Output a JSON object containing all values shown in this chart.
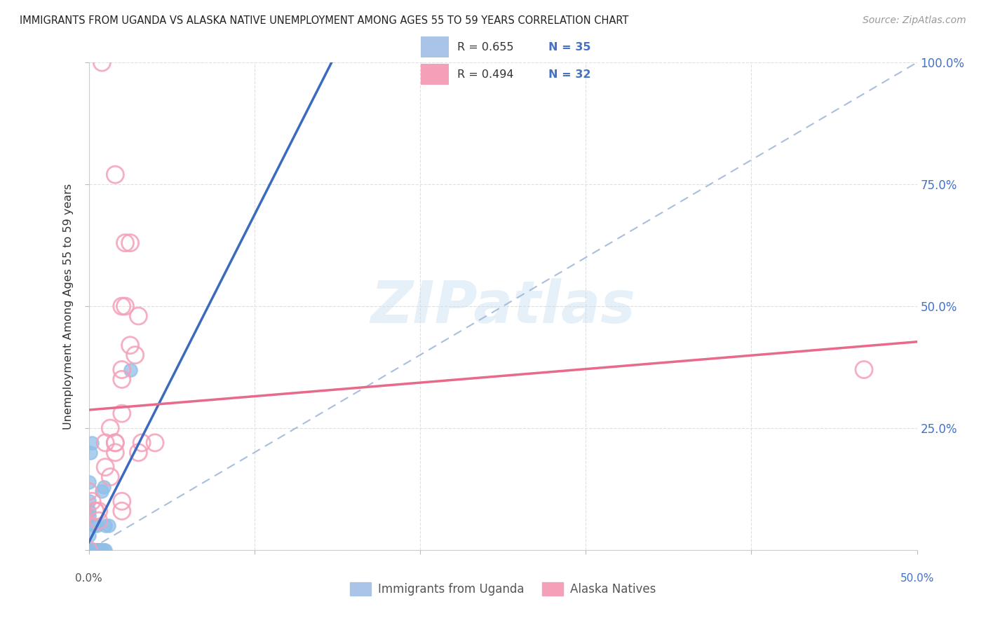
{
  "title": "IMMIGRANTS FROM UGANDA VS ALASKA NATIVE UNEMPLOYMENT AMONG AGES 55 TO 59 YEARS CORRELATION CHART",
  "source": "Source: ZipAtlas.com",
  "ylabel": "Unemployment Among Ages 55 to 59 years",
  "watermark": "ZIPatlas",
  "uganda_color": "#8fbfe8",
  "alaska_color": "#f4a0b8",
  "uganda_line_color": "#3b6abf",
  "alaska_line_color": "#e8698a",
  "diagonal_color": "#a0b8d8",
  "background_color": "#ffffff",
  "xlim": [
    0.0,
    0.5
  ],
  "ylim": [
    0.0,
    1.0
  ],
  "scatter_uganda": [
    [
      0.0,
      0.0
    ],
    [
      0.0,
      0.0
    ],
    [
      0.0,
      0.0
    ],
    [
      0.0,
      0.0
    ],
    [
      0.002,
      0.0
    ],
    [
      0.002,
      0.0
    ],
    [
      0.003,
      0.0
    ],
    [
      0.003,
      0.0
    ],
    [
      0.004,
      0.0
    ],
    [
      0.004,
      0.0
    ],
    [
      0.004,
      0.0
    ],
    [
      0.005,
      0.0
    ],
    [
      0.005,
      0.0
    ],
    [
      0.006,
      0.0
    ],
    [
      0.006,
      0.0
    ],
    [
      0.006,
      0.0
    ],
    [
      0.007,
      0.0
    ],
    [
      0.007,
      0.0
    ],
    [
      0.008,
      0.0
    ],
    [
      0.009,
      0.0
    ],
    [
      0.01,
      0.0
    ],
    [
      0.01,
      0.05
    ],
    [
      0.012,
      0.05
    ],
    [
      0.001,
      0.2
    ],
    [
      0.002,
      0.22
    ],
    [
      0.025,
      0.37
    ],
    [
      0.008,
      0.12
    ],
    [
      0.009,
      0.13
    ],
    [
      0.0,
      0.1
    ],
    [
      0.0,
      0.14
    ],
    [
      0.0,
      0.08
    ],
    [
      0.0,
      0.07
    ],
    [
      0.0,
      0.03
    ],
    [
      0.003,
      0.05
    ],
    [
      0.005,
      0.05
    ]
  ],
  "scatter_alaska": [
    [
      0.008,
      1.0
    ],
    [
      0.016,
      0.77
    ],
    [
      0.022,
      0.63
    ],
    [
      0.025,
      0.63
    ],
    [
      0.02,
      0.5
    ],
    [
      0.022,
      0.5
    ],
    [
      0.03,
      0.48
    ],
    [
      0.025,
      0.42
    ],
    [
      0.028,
      0.4
    ],
    [
      0.02,
      0.37
    ],
    [
      0.02,
      0.35
    ],
    [
      0.02,
      0.28
    ],
    [
      0.013,
      0.25
    ],
    [
      0.016,
      0.22
    ],
    [
      0.01,
      0.22
    ],
    [
      0.016,
      0.22
    ],
    [
      0.016,
      0.2
    ],
    [
      0.03,
      0.2
    ],
    [
      0.01,
      0.17
    ],
    [
      0.013,
      0.15
    ],
    [
      0.0,
      0.12
    ],
    [
      0.002,
      0.1
    ],
    [
      0.004,
      0.08
    ],
    [
      0.006,
      0.08
    ],
    [
      0.006,
      0.06
    ],
    [
      0.04,
      0.22
    ],
    [
      0.032,
      0.22
    ],
    [
      0.0,
      0.0
    ],
    [
      0.004,
      0.08
    ],
    [
      0.02,
      0.1
    ],
    [
      0.02,
      0.08
    ],
    [
      0.468,
      0.37
    ]
  ],
  "legend_patch_uganda_color": "#aac4e8",
  "legend_patch_alaska_color": "#f4a0b8",
  "legend_text_color": "#333333",
  "legend_num_color": "#4472c4",
  "R_uganda": 0.655,
  "N_uganda": 35,
  "R_alaska": 0.494,
  "N_alaska": 32
}
